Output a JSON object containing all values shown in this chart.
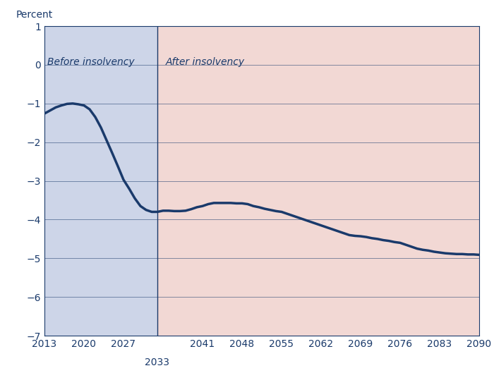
{
  "ylabel": "Percent",
  "xlim": [
    2013,
    2090
  ],
  "ylim": [
    -7,
    1
  ],
  "yticks": [
    1,
    0,
    -1,
    -2,
    -3,
    -4,
    -5,
    -6,
    -7
  ],
  "xticks": [
    2013,
    2020,
    2027,
    2041,
    2048,
    2055,
    2062,
    2069,
    2076,
    2083,
    2090
  ],
  "xtick_labels": [
    "2013",
    "2020",
    "2027",
    "2041",
    "2048",
    "2055",
    "2062",
    "2069",
    "2076",
    "2083",
    "2090"
  ],
  "insolvency_year": 2033,
  "insolvency_label": "2033",
  "before_label": "Before insolvency",
  "after_label": "After insolvency",
  "line_color": "#1a3a6b",
  "before_bg": "#cdd5e8",
  "after_bg": "#f2d8d4",
  "line_width": 2.5,
  "years": [
    2013,
    2014,
    2015,
    2016,
    2017,
    2018,
    2019,
    2020,
    2021,
    2022,
    2023,
    2024,
    2025,
    2026,
    2027,
    2028,
    2029,
    2030,
    2031,
    2032,
    2033,
    2034,
    2035,
    2036,
    2037,
    2038,
    2039,
    2040,
    2041,
    2042,
    2043,
    2044,
    2045,
    2046,
    2047,
    2048,
    2049,
    2050,
    2051,
    2052,
    2053,
    2054,
    2055,
    2056,
    2057,
    2058,
    2059,
    2060,
    2061,
    2062,
    2063,
    2064,
    2065,
    2066,
    2067,
    2068,
    2069,
    2070,
    2071,
    2072,
    2073,
    2074,
    2075,
    2076,
    2077,
    2078,
    2079,
    2080,
    2081,
    2082,
    2083,
    2084,
    2085,
    2086,
    2087,
    2088,
    2089,
    2090
  ],
  "values": [
    -1.26,
    -1.18,
    -1.1,
    -1.05,
    -1.01,
    -1.0,
    -1.02,
    -1.05,
    -1.15,
    -1.35,
    -1.62,
    -1.95,
    -2.28,
    -2.62,
    -2.97,
    -3.2,
    -3.45,
    -3.65,
    -3.75,
    -3.8,
    -3.8,
    -3.77,
    -3.77,
    -3.78,
    -3.78,
    -3.77,
    -3.73,
    -3.68,
    -3.65,
    -3.6,
    -3.57,
    -3.57,
    -3.57,
    -3.57,
    -3.58,
    -3.58,
    -3.6,
    -3.65,
    -3.68,
    -3.72,
    -3.75,
    -3.78,
    -3.8,
    -3.85,
    -3.9,
    -3.95,
    -4.0,
    -4.05,
    -4.1,
    -4.15,
    -4.2,
    -4.25,
    -4.3,
    -4.35,
    -4.4,
    -4.42,
    -4.43,
    -4.45,
    -4.48,
    -4.5,
    -4.53,
    -4.55,
    -4.58,
    -4.6,
    -4.65,
    -4.7,
    -4.75,
    -4.78,
    -4.8,
    -4.83,
    -4.85,
    -4.87,
    -4.88,
    -4.89,
    -4.89,
    -4.9,
    -4.9,
    -4.91
  ],
  "border_color": "#1a3a6b",
  "grid_color": "#1a3a6b",
  "label_color": "#1a3a6b",
  "tick_color": "#1a3a6b",
  "tick_fontsize": 10,
  "ylabel_fontsize": 10,
  "annotation_fontsize": 10
}
